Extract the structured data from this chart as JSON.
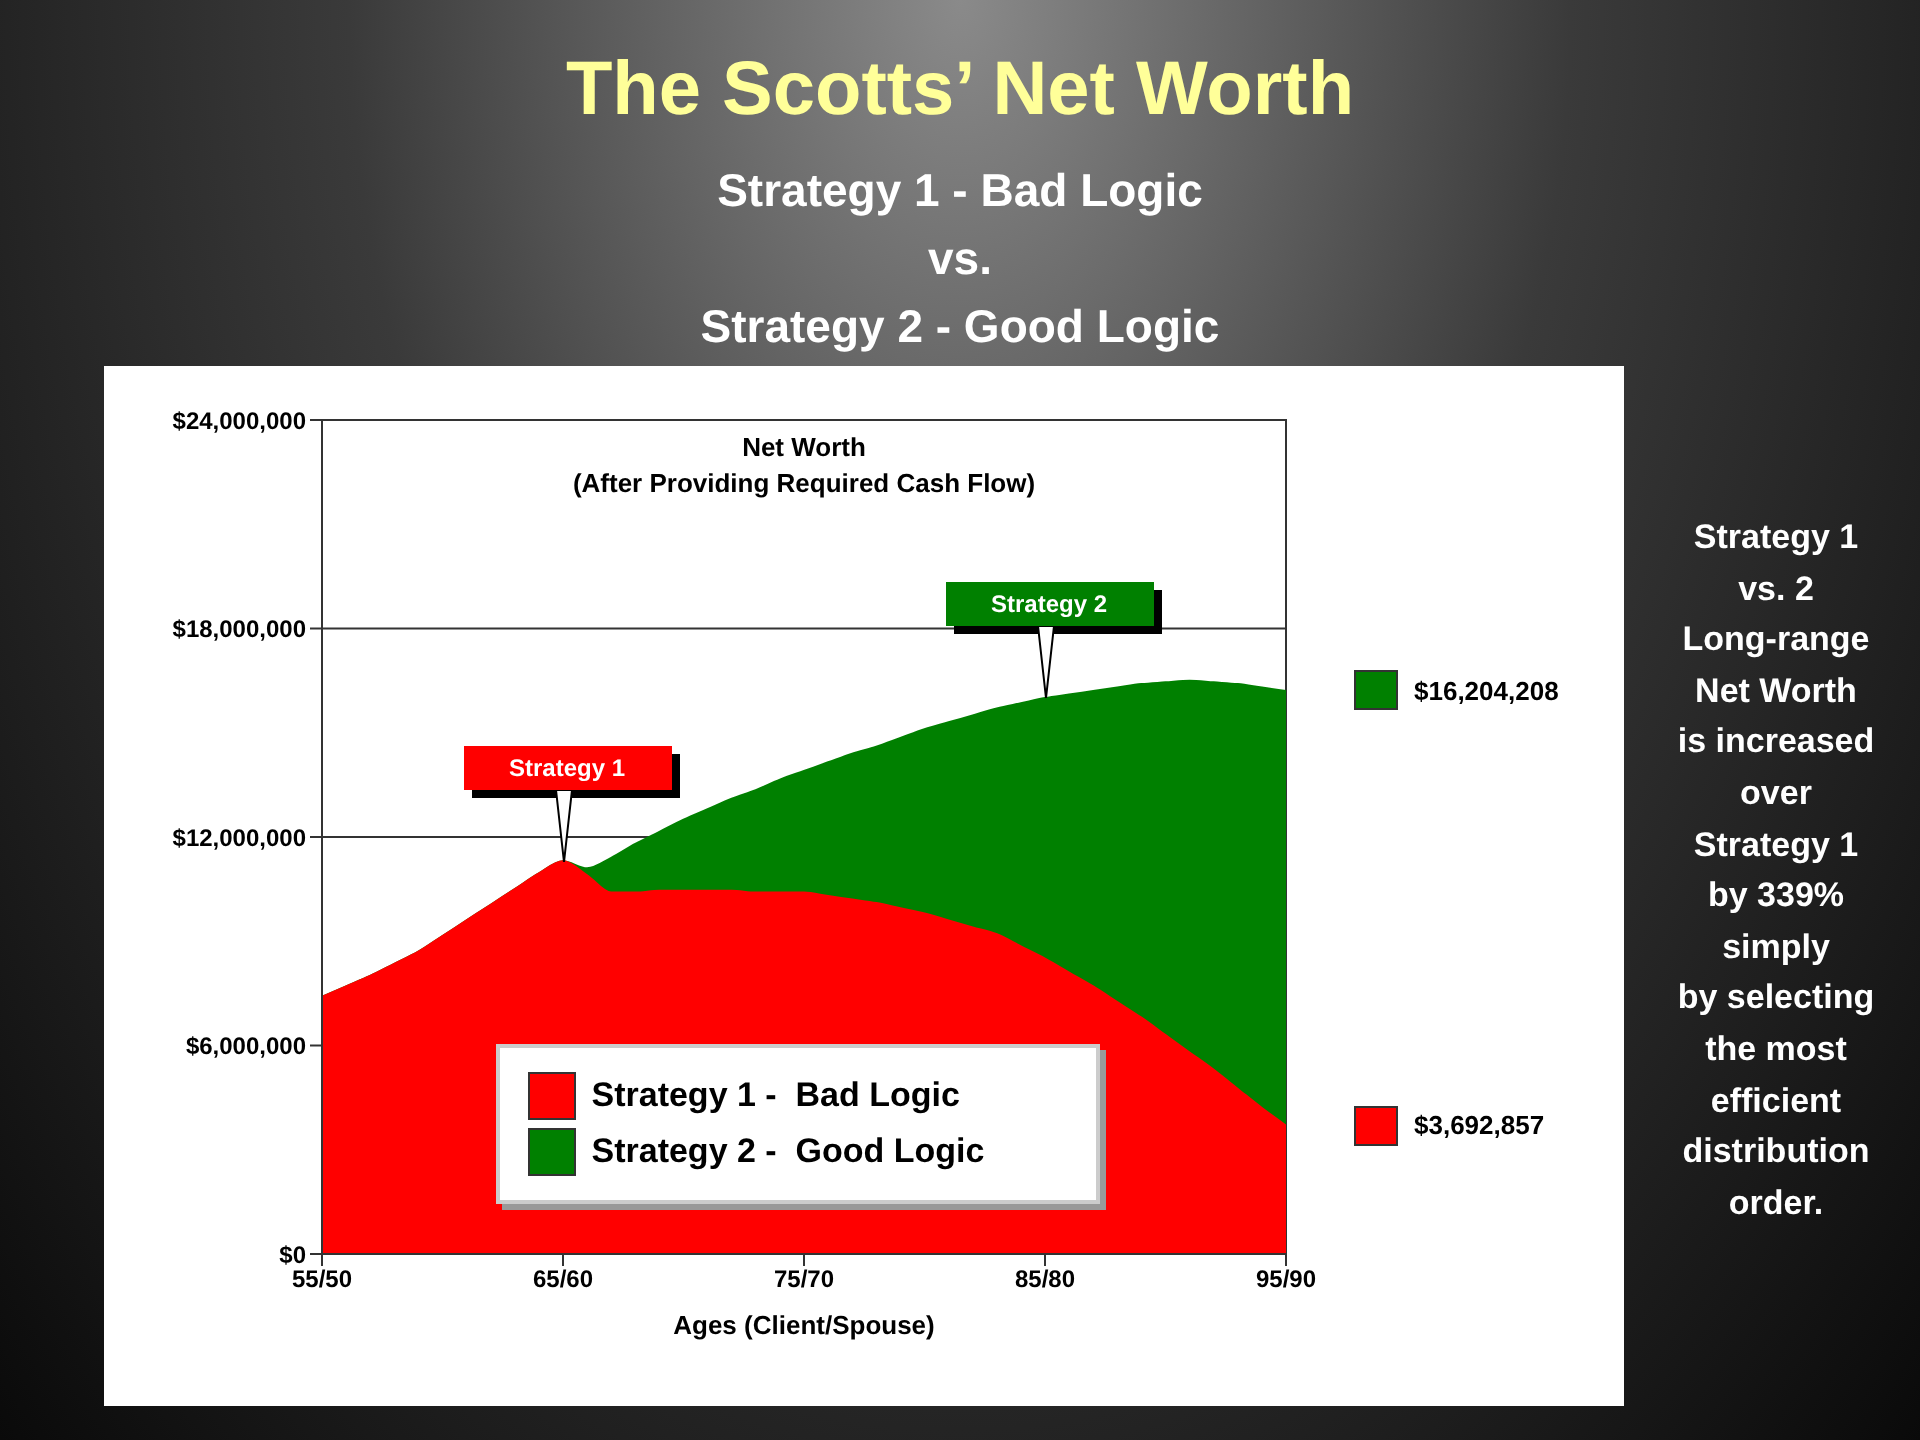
{
  "chart_data": {
    "type": "area",
    "title": "The Scotts’ Net Worth",
    "subtitle": "Strategy 1 - Bad Logic\nvs.\nStrategy 2 - Good Logic",
    "xlabel": "Ages (Client/Spouse)",
    "categories": [
      "55/50",
      null,
      null,
      null,
      null,
      null,
      null,
      null,
      null,
      null,
      "65/60",
      null,
      null,
      null,
      null,
      null,
      null,
      null,
      null,
      null,
      "75/70",
      null,
      null,
      null,
      null,
      null,
      null,
      null,
      null,
      null,
      "85/80",
      null,
      null,
      null,
      null,
      null,
      null,
      null,
      null,
      null,
      "95/90"
    ],
    "series": [
      {
        "name": "Strategy 1 -  Bad Logic",
        "color": "#ff0000",
        "values": [
          7400000,
          7700000,
          8000000,
          8350000,
          8700000,
          9150000,
          9600000,
          10050000,
          10500000,
          10950000,
          11300000,
          10900000,
          10400000,
          10400000,
          10450000,
          10450000,
          10450000,
          10450000,
          10400000,
          10400000,
          10400000,
          10300000,
          10200000,
          10100000,
          9950000,
          9800000,
          9600000,
          9400000,
          9200000,
          8850000,
          8500000,
          8100000,
          7700000,
          7250000,
          6800000,
          6300000,
          5800000,
          5300000,
          4750000,
          4200000,
          3692857
        ]
      },
      {
        "name": "Strategy 2 -  Good Logic",
        "color": "#008000",
        "values": [
          7400000,
          7700000,
          8000000,
          8350000,
          8700000,
          9150000,
          9600000,
          10050000,
          10500000,
          10950000,
          11300000,
          11100000,
          11400000,
          11800000,
          12150000,
          12500000,
          12800000,
          13100000,
          13350000,
          13650000,
          13900000,
          14150000,
          14400000,
          14600000,
          14850000,
          15100000,
          15300000,
          15500000,
          15700000,
          15850000,
          16000000,
          16100000,
          16200000,
          16300000,
          16400000,
          16450000,
          16500000,
          16450000,
          16400000,
          16300000,
          16204208
        ]
      }
    ],
    "ylim": [
      0,
      24000000
    ],
    "yticks": [
      {
        "value": 0,
        "label": "$0"
      },
      {
        "value": 6000000,
        "label": "$6,000,000"
      },
      {
        "value": 12000000,
        "label": "$12,000,000"
      },
      {
        "value": 18000000,
        "label": "$18,000,000"
      },
      {
        "value": 24000000,
        "label": "$24,000,000"
      }
    ],
    "grid": "y",
    "legend": "bottom",
    "annotations": [
      "Net Worth\n(After Providing Required Cash Flow)",
      {
        "text": "Strategy 1",
        "x": "65/60",
        "y": 11300000
      },
      {
        "text": "Strategy 2",
        "x": "85/80",
        "y": 16000000
      },
      "$3,692,857",
      "$16,204,208",
      "Strategy 1\nvs. 2\nLong-range\nNet Worth\nis increased\nover\nStrategy 1\nby 339%\nsimply\nby selecting\nthe most\nefficient\ndistribution\norder."
    ]
  }
}
